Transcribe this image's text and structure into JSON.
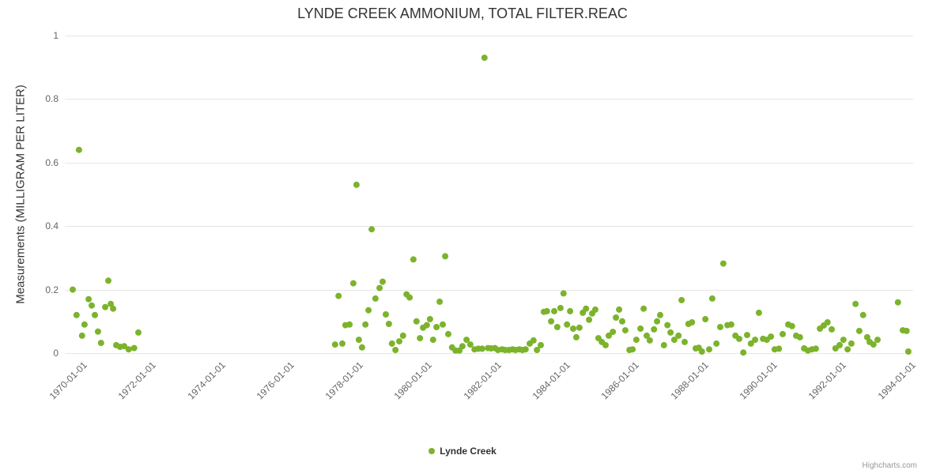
{
  "credits": "Highcharts.com",
  "chart_data": {
    "type": "scatter",
    "title": "LYNDE CREEK AMMONIUM, TOTAL FILTER.REAC",
    "xlabel": "",
    "ylabel": "Measurements (MILLIGRAM PER LITER)",
    "ylim": [
      0,
      1
    ],
    "y_ticks": [
      0,
      0.2,
      0.4,
      0.6,
      0.8,
      1
    ],
    "x_range": [
      1969.52,
      1994.1
    ],
    "x_ticks": [
      {
        "value": 1970,
        "label": "1970-01-01"
      },
      {
        "value": 1972,
        "label": "1972-01-01"
      },
      {
        "value": 1974,
        "label": "1974-01-01"
      },
      {
        "value": 1976,
        "label": "1976-01-01"
      },
      {
        "value": 1978,
        "label": "1978-01-01"
      },
      {
        "value": 1980,
        "label": "1980-01-01"
      },
      {
        "value": 1982,
        "label": "1982-01-01"
      },
      {
        "value": 1984,
        "label": "1984-01-01"
      },
      {
        "value": 1986,
        "label": "1986-01-01"
      },
      {
        "value": 1988,
        "label": "1988-01-01"
      },
      {
        "value": 1990,
        "label": "1990-01-01"
      },
      {
        "value": 1992,
        "label": "1992-01-01"
      },
      {
        "value": 1994,
        "label": "1994-01-01"
      }
    ],
    "grid": "horizontal",
    "legend_position": "bottom-center",
    "marker_color": "#7cb32c",
    "series": [
      {
        "name": "Lynde Creek",
        "color": "#7cb32c",
        "points": [
          [
            1969.75,
            0.2
          ],
          [
            1969.86,
            0.12
          ],
          [
            1969.93,
            0.64
          ],
          [
            1970.02,
            0.055
          ],
          [
            1970.09,
            0.09
          ],
          [
            1970.21,
            0.17
          ],
          [
            1970.3,
            0.15
          ],
          [
            1970.39,
            0.12
          ],
          [
            1970.48,
            0.068
          ],
          [
            1970.57,
            0.032
          ],
          [
            1970.69,
            0.145
          ],
          [
            1970.78,
            0.228
          ],
          [
            1970.85,
            0.155
          ],
          [
            1970.92,
            0.14
          ],
          [
            1971.01,
            0.025
          ],
          [
            1971.12,
            0.02
          ],
          [
            1971.24,
            0.022
          ],
          [
            1971.37,
            0.012
          ],
          [
            1971.53,
            0.016
          ],
          [
            1971.65,
            0.065
          ],
          [
            1977.35,
            0.027
          ],
          [
            1977.45,
            0.18
          ],
          [
            1977.56,
            0.03
          ],
          [
            1977.65,
            0.088
          ],
          [
            1977.77,
            0.09
          ],
          [
            1977.88,
            0.22
          ],
          [
            1977.97,
            0.53
          ],
          [
            1978.04,
            0.042
          ],
          [
            1978.13,
            0.018
          ],
          [
            1978.23,
            0.09
          ],
          [
            1978.32,
            0.135
          ],
          [
            1978.41,
            0.39
          ],
          [
            1978.52,
            0.172
          ],
          [
            1978.64,
            0.205
          ],
          [
            1978.73,
            0.225
          ],
          [
            1978.82,
            0.122
          ],
          [
            1978.91,
            0.092
          ],
          [
            1979.0,
            0.03
          ],
          [
            1979.1,
            0.01
          ],
          [
            1979.21,
            0.037
          ],
          [
            1979.32,
            0.055
          ],
          [
            1979.42,
            0.185
          ],
          [
            1979.51,
            0.175
          ],
          [
            1979.62,
            0.295
          ],
          [
            1979.71,
            0.1
          ],
          [
            1979.81,
            0.047
          ],
          [
            1979.9,
            0.08
          ],
          [
            1980.01,
            0.088
          ],
          [
            1980.1,
            0.107
          ],
          [
            1980.19,
            0.042
          ],
          [
            1980.29,
            0.082
          ],
          [
            1980.38,
            0.162
          ],
          [
            1980.47,
            0.09
          ],
          [
            1980.54,
            0.305
          ],
          [
            1980.63,
            0.06
          ],
          [
            1980.74,
            0.018
          ],
          [
            1980.84,
            0.008
          ],
          [
            1980.95,
            0.008
          ],
          [
            1981.04,
            0.022
          ],
          [
            1981.16,
            0.042
          ],
          [
            1981.27,
            0.027
          ],
          [
            1981.39,
            0.012
          ],
          [
            1981.5,
            0.014
          ],
          [
            1981.61,
            0.014
          ],
          [
            1981.68,
            0.93
          ],
          [
            1981.78,
            0.016
          ],
          [
            1981.87,
            0.015
          ],
          [
            1981.98,
            0.016
          ],
          [
            1982.07,
            0.01
          ],
          [
            1982.19,
            0.012
          ],
          [
            1982.28,
            0.01
          ],
          [
            1982.39,
            0.01
          ],
          [
            1982.49,
            0.012
          ],
          [
            1982.58,
            0.01
          ],
          [
            1982.69,
            0.012
          ],
          [
            1982.78,
            0.01
          ],
          [
            1982.87,
            0.012
          ],
          [
            1982.99,
            0.03
          ],
          [
            1983.1,
            0.04
          ],
          [
            1983.2,
            0.01
          ],
          [
            1983.31,
            0.025
          ],
          [
            1983.4,
            0.13
          ],
          [
            1983.49,
            0.132
          ],
          [
            1983.61,
            0.1
          ],
          [
            1983.7,
            0.132
          ],
          [
            1983.79,
            0.082
          ],
          [
            1983.88,
            0.142
          ],
          [
            1983.97,
            0.188
          ],
          [
            1984.07,
            0.09
          ],
          [
            1984.16,
            0.132
          ],
          [
            1984.25,
            0.077
          ],
          [
            1984.34,
            0.05
          ],
          [
            1984.43,
            0.08
          ],
          [
            1984.53,
            0.127
          ],
          [
            1984.62,
            0.14
          ],
          [
            1984.71,
            0.105
          ],
          [
            1984.8,
            0.125
          ],
          [
            1984.89,
            0.137
          ],
          [
            1984.98,
            0.047
          ],
          [
            1985.08,
            0.035
          ],
          [
            1985.19,
            0.025
          ],
          [
            1985.28,
            0.055
          ],
          [
            1985.4,
            0.067
          ],
          [
            1985.49,
            0.112
          ],
          [
            1985.58,
            0.137
          ],
          [
            1985.67,
            0.1
          ],
          [
            1985.76,
            0.072
          ],
          [
            1985.88,
            0.01
          ],
          [
            1985.97,
            0.012
          ],
          [
            1986.08,
            0.042
          ],
          [
            1986.2,
            0.077
          ],
          [
            1986.29,
            0.14
          ],
          [
            1986.38,
            0.055
          ],
          [
            1986.47,
            0.04
          ],
          [
            1986.59,
            0.075
          ],
          [
            1986.68,
            0.1
          ],
          [
            1986.77,
            0.12
          ],
          [
            1986.88,
            0.025
          ],
          [
            1986.98,
            0.088
          ],
          [
            1987.07,
            0.065
          ],
          [
            1987.18,
            0.042
          ],
          [
            1987.3,
            0.055
          ],
          [
            1987.39,
            0.167
          ],
          [
            1987.48,
            0.035
          ],
          [
            1987.59,
            0.092
          ],
          [
            1987.69,
            0.097
          ],
          [
            1987.8,
            0.015
          ],
          [
            1987.89,
            0.017
          ],
          [
            1987.98,
            0.005
          ],
          [
            1988.08,
            0.107
          ],
          [
            1988.19,
            0.012
          ],
          [
            1988.28,
            0.172
          ],
          [
            1988.4,
            0.03
          ],
          [
            1988.51,
            0.082
          ],
          [
            1988.6,
            0.282
          ],
          [
            1988.72,
            0.088
          ],
          [
            1988.83,
            0.09
          ],
          [
            1988.95,
            0.055
          ],
          [
            1989.06,
            0.045
          ],
          [
            1989.18,
            0.002
          ],
          [
            1989.29,
            0.057
          ],
          [
            1989.4,
            0.03
          ],
          [
            1989.52,
            0.042
          ],
          [
            1989.63,
            0.127
          ],
          [
            1989.75,
            0.045
          ],
          [
            1989.86,
            0.042
          ],
          [
            1989.98,
            0.052
          ],
          [
            1990.09,
            0.012
          ],
          [
            1990.21,
            0.014
          ],
          [
            1990.32,
            0.06
          ],
          [
            1990.48,
            0.09
          ],
          [
            1990.59,
            0.085
          ],
          [
            1990.71,
            0.055
          ],
          [
            1990.82,
            0.05
          ],
          [
            1990.94,
            0.015
          ],
          [
            1991.05,
            0.008
          ],
          [
            1991.17,
            0.012
          ],
          [
            1991.28,
            0.014
          ],
          [
            1991.4,
            0.077
          ],
          [
            1991.51,
            0.087
          ],
          [
            1991.62,
            0.097
          ],
          [
            1991.74,
            0.075
          ],
          [
            1991.85,
            0.015
          ],
          [
            1991.97,
            0.025
          ],
          [
            1992.08,
            0.042
          ],
          [
            1992.2,
            0.012
          ],
          [
            1992.31,
            0.03
          ],
          [
            1992.43,
            0.155
          ],
          [
            1992.54,
            0.07
          ],
          [
            1992.65,
            0.12
          ],
          [
            1992.77,
            0.05
          ],
          [
            1992.84,
            0.035
          ],
          [
            1992.95,
            0.027
          ],
          [
            1993.07,
            0.042
          ],
          [
            1993.66,
            0.16
          ],
          [
            1993.8,
            0.072
          ],
          [
            1993.91,
            0.07
          ],
          [
            1993.96,
            0.005
          ]
        ]
      }
    ]
  }
}
